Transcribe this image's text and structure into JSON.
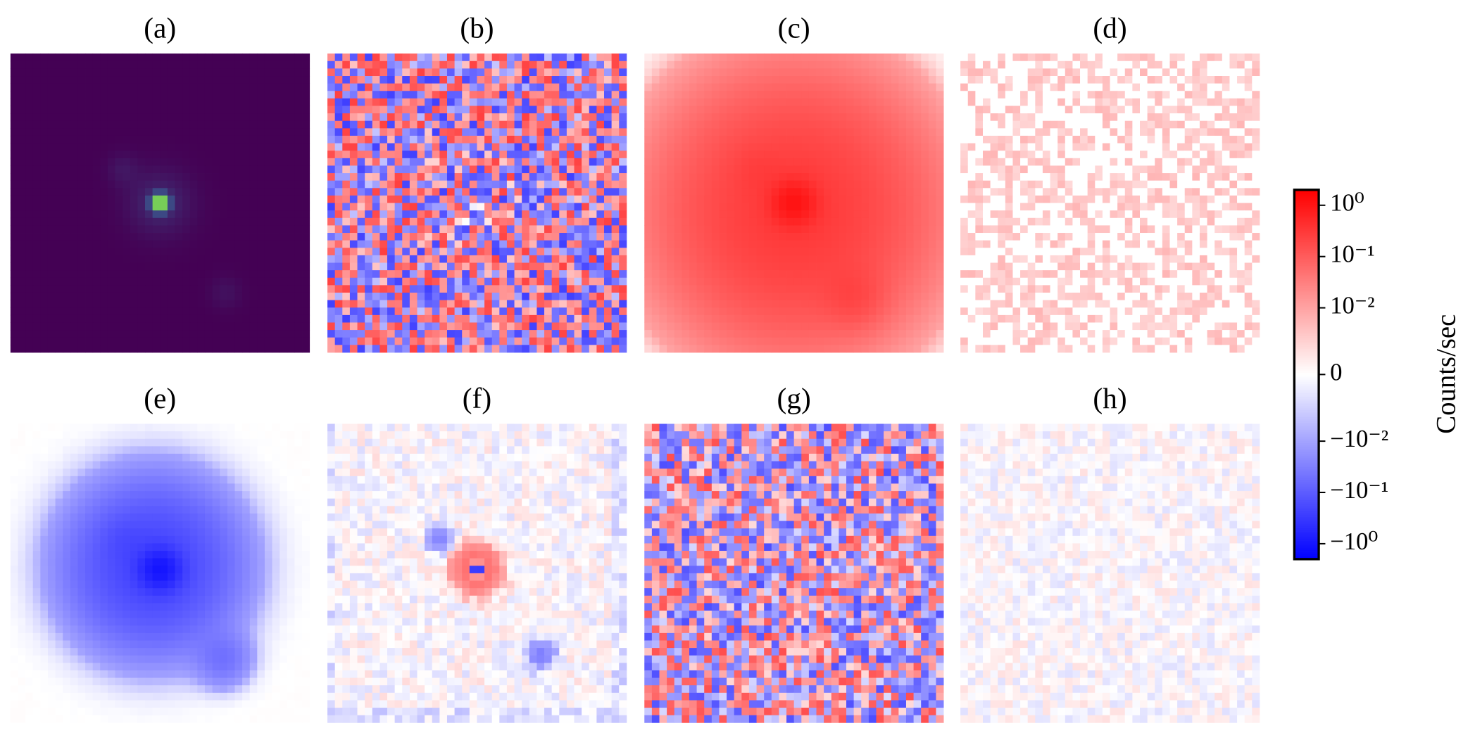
{
  "chart_data": {
    "type": "image_grid",
    "panels": [
      "(a)",
      "(b)",
      "(c)",
      "(d)",
      "(e)",
      "(f)",
      "(g)",
      "(h)"
    ],
    "colorbar": {
      "label": "Counts/sec",
      "scale": "symlog",
      "linthresh": 0.01,
      "linscale": 1.3,
      "colors": [
        "#0000ff",
        "#ffffff",
        "#ff0000"
      ],
      "ylim": [
        -2,
        2
      ],
      "yticks": [
        {
          "value": 1,
          "label": "10⁰"
        },
        {
          "value": 0.1,
          "label": "10⁻¹"
        },
        {
          "value": 0.01,
          "label": "10⁻²"
        },
        0,
        {
          "value": -0.01,
          "label": "−10⁻²"
        },
        {
          "value": -0.1,
          "label": "−10⁻¹"
        },
        {
          "value": -1,
          "label": "−10⁰"
        }
      ]
    }
  }
}
